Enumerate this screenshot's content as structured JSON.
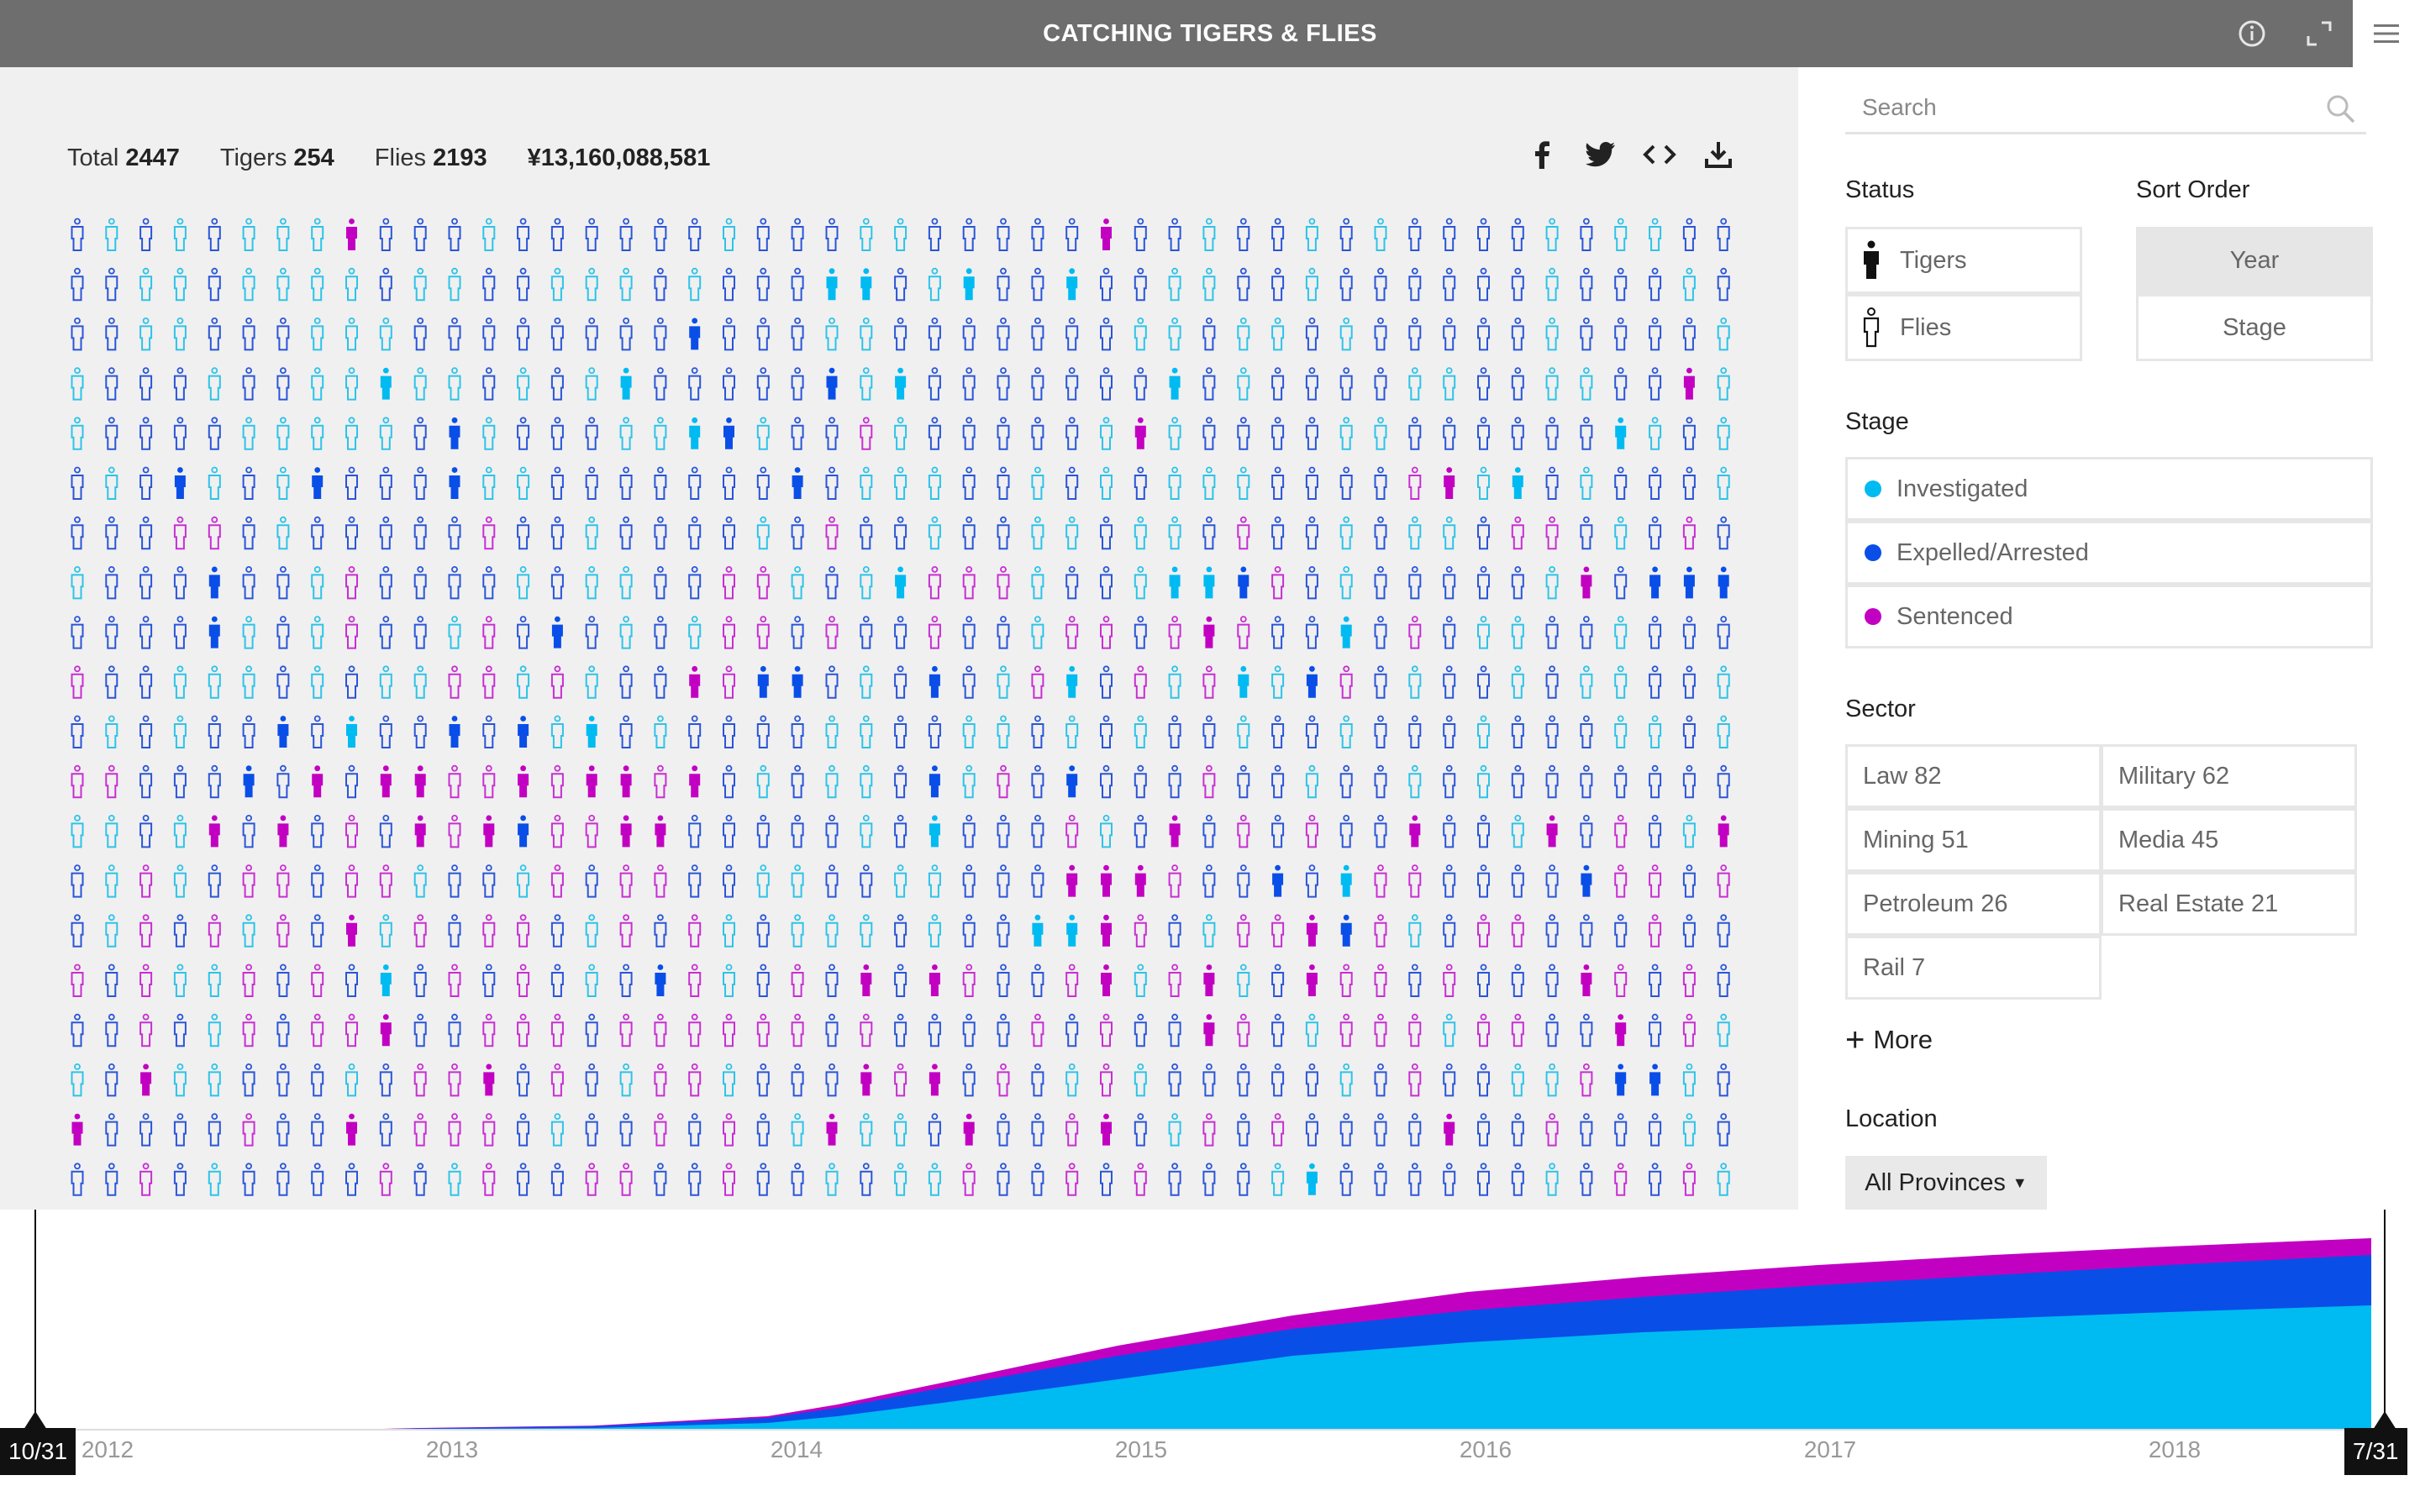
{
  "app": {
    "title": "CATCHING TIGERS & FLIES",
    "icons": {
      "info": "info-icon",
      "expand": "expand-icon",
      "menu": "menu-icon"
    }
  },
  "stats": {
    "total_label": "Total",
    "total_value": "2447",
    "tigers_label": "Tigers",
    "tigers_value": "254",
    "flies_label": "Flies",
    "flies_value": "2193",
    "amount": "¥13,160,088,581"
  },
  "share": [
    "facebook-icon",
    "twitter-icon",
    "embed-icon",
    "download-icon"
  ],
  "colors": {
    "investigated": "#00baf2",
    "expelled": "#0a4ee8",
    "sentenced": "#c200c2",
    "cyan_outline": "#2ec3e8",
    "blue_outline": "#2a55d8",
    "magenta_outline": "#c82ed2",
    "topbar": "#6e6e6e"
  },
  "grid": {
    "columns": 49,
    "rows": 20,
    "cells": [
      "BCBCBCCCTBBBCBBBBBBCBBBCCBBBBBTBBCBBCBCBBBBCBCCBB",
      "BBCCBCCCCBCCBBCCCBCBBBFFBCFBBFBBCCBBCBBBBBBCBBBCB",
      "BBCCBBBCCCBBBBBBBBHBBBCCBBBBBBBCCBCCBCBBBBBCBBBBC",
      "CBBBCBBCCFCCBCBCFBBBBBHCFBBBBBBBFBCBBBBCCBBCCBBTC",
      "CBBBBCCCCCBHCBBBCCFHCBBMCBBBBBCTCBBBBCCBBBBBBFCBC",
      "BCBHCBCHBBBHCCBBBBBBBHBCCCBBCBCBCCCBBBBMTCFBCBBBC",
      "BBBMMBCBBBBBMBBCBBBBCBMBBCBBCCBCCBMBBCBCCBMMBCBMB",
      "CBBBHBBCMBBBBCBCCBBMMCBCFMMMCBBCFFHMBCBBBBBCTBHHH",
      "BBBBHCBCMBBCMBHBCBCMMBMBBMBBCMMBMTMBBFBMBCCBBCBBB",
      "MBBCCCBCBCCMMCMCBBTMHHBCBHBCMFBMCMFCHMBCBBCBCCBBC",
      "BCBCBBHBFBBHBHCFBCBBBBCCBBCCBCBCBBCBBCBBBCBBBCCBC",
      "MMBBBHBTBTTMMTMTTMTBCBCCBHCMBHBBBMBBCBBCBCBBBBBBB",
      "CCBCTBTBMBTMTHMMTTBBBBBCBFBBBMCBTBMBMBBTBBCTBMBCT",
      "BCMCBMMBMMCBBCMBMMBBCCBBCCBBBTTTMBBHBFMMBBBBHMMBM",
      "BCMBMCMBTCMBMMBCMBMCBCCCBCBBFFTMBCMMTHMCBMMBBBMBB",
      "MBMCCMBMBFBMBMBCBHMCBMBTBTMBBMTCMTCBTMMBMBBBTMBMB",
      "BBMBCMBMMTBBMMMBMMMMMMBMBBBBMBMBBTMBCMMMCMMBBTBMC",
      "CBTCCBBBCBMMTBMBCMMCBBBTMTBMBCMCBBBBBCBMBBCCMHHCB",
      "TBBBBMBBTBMMMBCBBMBMBCTCCBTBBMTBCMBMBBBBTBBMBBBCB",
      "BBMBCBBBBMBCMBBMMBBMBBCBCCMBBMBMBBBCFBBBBBBCBMBMC"
    ],
    "legend": {
      "B": "fly-expelled",
      "C": "fly-investigated",
      "M": "fly-sentenced",
      "H": "tiger-expelled",
      "F": "tiger-investigated",
      "T": "tiger-sentenced"
    }
  },
  "sidebar": {
    "search_placeholder": "Search",
    "status_label": "Status",
    "status_items": [
      {
        "label": "Tigers",
        "icon": "tiger-figure-icon"
      },
      {
        "label": "Flies",
        "icon": "fly-figure-icon"
      }
    ],
    "sort_label": "Sort Order",
    "sort_items": [
      {
        "label": "Year",
        "active": true
      },
      {
        "label": "Stage",
        "active": false
      }
    ],
    "stage_label": "Stage",
    "stage_items": [
      {
        "label": "Investigated",
        "color": "#00baf2"
      },
      {
        "label": "Expelled/Arrested",
        "color": "#0a4ee8"
      },
      {
        "label": "Sentenced",
        "color": "#c200c2"
      }
    ],
    "sector_label": "Sector",
    "sector_items": [
      {
        "label": "Law 82"
      },
      {
        "label": "Military 62"
      },
      {
        "label": "Mining 51"
      },
      {
        "label": "Media 45"
      },
      {
        "label": "Petroleum 26"
      },
      {
        "label": "Real Estate 21"
      },
      {
        "label": "Rail 7"
      }
    ],
    "more_label": "More",
    "location_label": "Location",
    "location_value": "All Provinces"
  },
  "timeline": {
    "start_label": "10/31",
    "end_label": "7/31",
    "years": [
      "2012",
      "2013",
      "2014",
      "2015",
      "2016",
      "2017",
      "2018"
    ],
    "series": [
      {
        "name": "Investigated",
        "color": "#00baf2",
        "x": [
          2012.8,
          2013.0,
          2013.5,
          2014.0,
          2014.2,
          2014.5,
          2015.0,
          2015.5,
          2016.0,
          2016.5,
          2017.0,
          2017.5,
          2018.0,
          2018.58
        ],
        "y": [
          0,
          2,
          5,
          20,
          40,
          80,
          150,
          220,
          260,
          290,
          310,
          330,
          350,
          370
        ]
      },
      {
        "name": "Expelled/Arrested",
        "color": "#0a4ee8",
        "x": [
          2012.8,
          2013.0,
          2013.5,
          2014.0,
          2014.2,
          2014.5,
          2015.0,
          2015.5,
          2016.0,
          2016.5,
          2017.0,
          2017.5,
          2018.0,
          2018.58
        ],
        "y": [
          0,
          4,
          10,
          35,
          65,
          125,
          220,
          300,
          355,
          395,
          430,
          460,
          490,
          520
        ]
      },
      {
        "name": "Sentenced",
        "color": "#c200c2",
        "x": [
          2012.8,
          2013.0,
          2013.5,
          2014.0,
          2014.2,
          2014.5,
          2015.0,
          2015.5,
          2016.0,
          2016.5,
          2017.0,
          2017.5,
          2018.0,
          2018.58
        ],
        "y": [
          0,
          5,
          12,
          40,
          75,
          140,
          250,
          340,
          410,
          455,
          490,
          520,
          545,
          570
        ]
      }
    ]
  }
}
